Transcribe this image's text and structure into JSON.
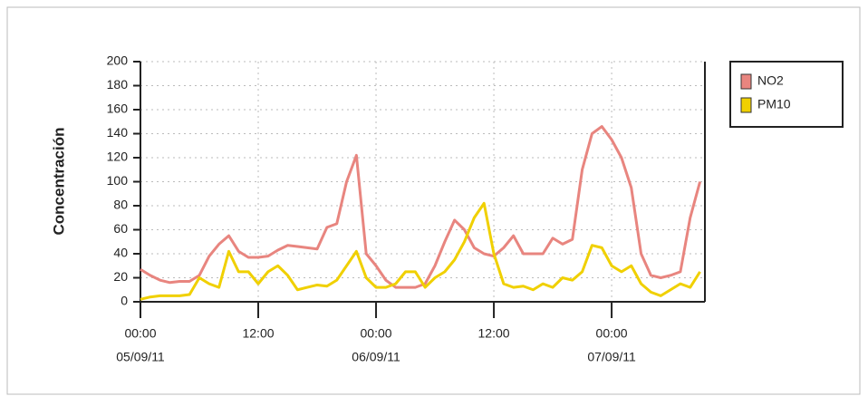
{
  "chart_data": {
    "type": "line",
    "y_label": "Concentración",
    "x": [
      0,
      1,
      2,
      3,
      4,
      5,
      6,
      7,
      8,
      9,
      10,
      11,
      12,
      13,
      14,
      15,
      16,
      17,
      18,
      19,
      20,
      21,
      22,
      23,
      24,
      25,
      26,
      27,
      28,
      29,
      30,
      31,
      32,
      33,
      34,
      35,
      36,
      37,
      38,
      39,
      40,
      41,
      42,
      43,
      44,
      45,
      46,
      47,
      48,
      49,
      50,
      51,
      52,
      53,
      54,
      55,
      56,
      57
    ],
    "series": [
      {
        "name": "NO2",
        "color": "#e8857f",
        "values": [
          27,
          22,
          18,
          16,
          17,
          17,
          22,
          38,
          48,
          55,
          42,
          37,
          37,
          38,
          43,
          47,
          46,
          45,
          44,
          62,
          65,
          100,
          122,
          40,
          30,
          18,
          12,
          12,
          12,
          15,
          30,
          50,
          68,
          60,
          45,
          40,
          38,
          45,
          55,
          40,
          40,
          40,
          53,
          48,
          52,
          110,
          140,
          146,
          135,
          120,
          95,
          40,
          22,
          20,
          22,
          25,
          70,
          100
        ]
      },
      {
        "name": "PM10",
        "color": "#f0d000",
        "values": [
          2,
          4,
          5,
          5,
          5,
          6,
          20,
          15,
          12,
          42,
          25,
          25,
          15,
          25,
          30,
          22,
          10,
          12,
          14,
          13,
          18,
          30,
          42,
          20,
          12,
          12,
          15,
          25,
          25,
          12,
          20,
          25,
          35,
          50,
          70,
          82,
          40,
          15,
          12,
          13,
          10,
          15,
          12,
          20,
          18,
          25,
          47,
          45,
          30,
          25,
          30,
          15,
          8,
          5,
          10,
          15,
          12,
          25
        ]
      }
    ],
    "xlim": [
      0,
      57.5
    ],
    "xticks": [
      {
        "value": 0,
        "label": "00:00",
        "date": "05/09/11"
      },
      {
        "value": 12,
        "label": "12:00"
      },
      {
        "value": 24,
        "label": "00:00",
        "date": "06/09/11"
      },
      {
        "value": 36,
        "label": "12:00"
      },
      {
        "value": 48,
        "label": "00:00",
        "date": "07/09/11"
      }
    ],
    "ylim": [
      0,
      200
    ],
    "yticks": [
      0,
      20,
      40,
      60,
      80,
      100,
      120,
      140,
      160,
      180,
      200
    ],
    "grid": true,
    "legend": "top-right"
  }
}
